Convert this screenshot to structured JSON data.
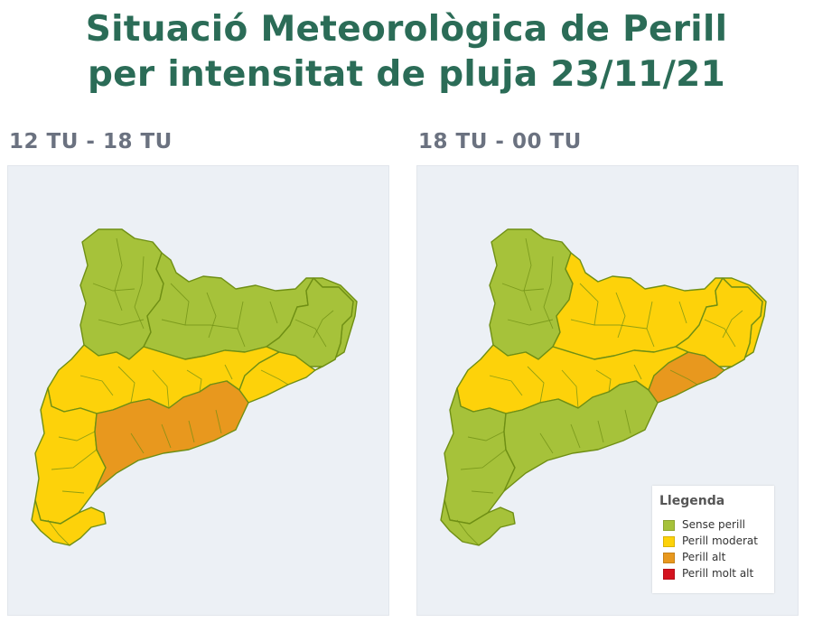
{
  "title": {
    "line1": "Situació Meteorològica de Perill",
    "line2": "per intensitat de pluja 23/11/21"
  },
  "colors": {
    "background": "#ecf0f5",
    "border": "#6f8f14",
    "sense_perill": "#a6c23a",
    "perill_moderat": "#fdd20a",
    "perill_alt": "#e8981e",
    "perill_molt_alt": "#d4131f",
    "title": "#2b6c57"
  },
  "panels": [
    {
      "label": "12 TU - 18 TU",
      "levels": {
        "north_west": "sense_perill",
        "north_east": "sense_perill",
        "east_upper": "sense_perill",
        "central": "perill_moderat",
        "east_lower": "perill_moderat",
        "south_west": "perill_moderat",
        "coast": "perill_alt",
        "south": "perill_moderat"
      }
    },
    {
      "label": "18 TU - 00 TU",
      "levels": {
        "north_west": "sense_perill",
        "north_east": "perill_moderat",
        "east_upper": "perill_moderat",
        "central": "perill_moderat",
        "east_lower": "perill_alt",
        "south_west": "sense_perill",
        "coast": "sense_perill",
        "south": "sense_perill"
      }
    }
  ],
  "legend": {
    "title": "Llegenda",
    "items": [
      {
        "key": "sense_perill",
        "label": "Sense perill",
        "color": "#a6c23a"
      },
      {
        "key": "perill_moderat",
        "label": "Perill moderat",
        "color": "#fdd20a"
      },
      {
        "key": "perill_alt",
        "label": "Perill alt",
        "color": "#e8981e"
      },
      {
        "key": "perill_molt_alt",
        "label": "Perill molt alt",
        "color": "#d4131f"
      }
    ]
  }
}
